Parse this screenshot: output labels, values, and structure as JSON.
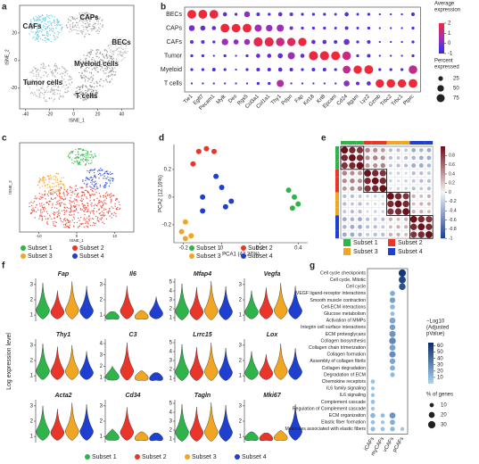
{
  "panels": {
    "a": {
      "label": "a",
      "x_label": "tSNE_1",
      "y_label": "tSNE_2",
      "xticks": [
        -40,
        -20,
        0,
        20,
        40
      ],
      "yticks": [
        -20,
        0,
        20
      ],
      "xlim": [
        -45,
        50
      ],
      "ylim": [
        -35,
        40
      ],
      "clusters": [
        "CAFs",
        "CAPs",
        "BECs",
        "Myeloid cells",
        "Tumor cells",
        "T cells"
      ]
    },
    "b": {
      "label": "b",
      "rows": [
        "BECs",
        "CAPs",
        "CAFs",
        "Tumor",
        "Myeloid",
        "T cells"
      ],
      "highlight_row_color": "#3fa7c9",
      "genes": [
        "Tie1",
        "Egfl7",
        "Pecam1",
        "Mylk",
        "Des",
        "Rgs5",
        "Col3a1",
        "Col1a1",
        "Thy1",
        "Pdpn",
        "Fap",
        "Krt18",
        "Krt8",
        "Epcam",
        "Cd24",
        "Itgam",
        "Lyz2",
        "Gzmb",
        "Trbc2",
        "Trbc1",
        "Ptprc"
      ],
      "expression": [
        [
          2,
          2,
          1.9,
          -0.3,
          -0.5,
          0.2,
          -0.4,
          -0.5,
          -0.3,
          -0.2,
          -0.5,
          -0.5,
          -0.5,
          -0.5,
          -0.4,
          -0.6,
          -0.6,
          -0.6,
          -0.6,
          -0.6,
          -0.6
        ],
        [
          0,
          -0.2,
          -0.3,
          2,
          2,
          2,
          0.5,
          0.3,
          0.5,
          -0.3,
          -0.5,
          -0.5,
          -0.5,
          -0.5,
          -0.5,
          -0.6,
          -0.6,
          -0.6,
          -0.6,
          -0.6,
          -0.6
        ],
        [
          -0.4,
          -0.4,
          -0.5,
          0.5,
          0.2,
          0.4,
          1.8,
          1.8,
          1.2,
          1.6,
          2,
          -0.3,
          -0.4,
          -0.4,
          -0.2,
          -0.5,
          -0.5,
          -0.6,
          -0.6,
          -0.6,
          -0.6
        ],
        [
          -0.6,
          -0.6,
          -0.6,
          -0.5,
          -0.5,
          -0.5,
          -0.3,
          -0.3,
          -0.3,
          0.5,
          -0.2,
          1.9,
          1.9,
          2,
          1.2,
          -0.5,
          -0.5,
          -0.6,
          -0.6,
          -0.6,
          -0.6
        ],
        [
          -0.6,
          -0.6,
          -0.5,
          -0.5,
          -0.6,
          -0.6,
          -0.5,
          -0.5,
          -0.5,
          -0.5,
          -0.5,
          -0.4,
          -0.5,
          -0.5,
          1,
          2,
          2,
          -0.4,
          -0.5,
          -0.5,
          1
        ],
        [
          -0.6,
          -0.6,
          -0.6,
          -0.6,
          -0.6,
          -0.6,
          -0.6,
          -0.6,
          0.8,
          -0.6,
          -0.6,
          -0.6,
          -0.6,
          -0.6,
          0.2,
          -0.3,
          -0.3,
          2,
          2,
          2,
          2
        ]
      ],
      "percent": [
        [
          90,
          92,
          88,
          20,
          10,
          40,
          15,
          10,
          20,
          15,
          10,
          10,
          10,
          8,
          20,
          8,
          10,
          5,
          5,
          5,
          15
        ],
        [
          40,
          30,
          20,
          90,
          85,
          90,
          60,
          50,
          60,
          15,
          10,
          10,
          10,
          8,
          15,
          8,
          10,
          5,
          5,
          5,
          10
        ],
        [
          15,
          15,
          10,
          50,
          30,
          40,
          95,
          95,
          85,
          80,
          80,
          20,
          20,
          15,
          40,
          10,
          15,
          5,
          5,
          5,
          10
        ],
        [
          10,
          10,
          5,
          10,
          5,
          10,
          20,
          20,
          30,
          60,
          20,
          95,
          95,
          90,
          85,
          10,
          15,
          5,
          5,
          5,
          10
        ],
        [
          10,
          10,
          15,
          10,
          5,
          10,
          15,
          15,
          20,
          15,
          10,
          15,
          15,
          10,
          70,
          80,
          90,
          10,
          10,
          10,
          85
        ],
        [
          5,
          5,
          5,
          5,
          5,
          5,
          10,
          10,
          60,
          5,
          5,
          5,
          5,
          5,
          40,
          15,
          20,
          80,
          85,
          80,
          90
        ]
      ],
      "color_title": [
        "Average",
        "expression"
      ],
      "color_lim": [
        -1,
        2
      ],
      "color_ticks": [
        2,
        1,
        0,
        -1
      ],
      "size_title": [
        "Percent",
        "expressed"
      ],
      "size_ticks": [
        25,
        50,
        75
      ]
    },
    "subsets": {
      "names": [
        "Subset 1",
        "Subset 2",
        "Subset 3",
        "Subset 4"
      ],
      "colors": [
        "#2fb34a",
        "#e8372a",
        "#f0a623",
        "#1f3fcf"
      ]
    },
    "c": {
      "label": "c",
      "x_label": "tSNE_1",
      "y_label": "tSNE_2",
      "xticks": [
        -10,
        0,
        10
      ],
      "xlim": [
        -15,
        15
      ]
    },
    "d": {
      "label": "d",
      "x_label": "PCA1 (43.27%)",
      "y_label": "PCA2 (12.16%)",
      "xlim": [
        -0.25,
        0.45
      ],
      "ylim": [
        -0.33,
        0.38
      ],
      "xticks": [
        -0.2,
        0,
        0.2,
        0.4
      ],
      "yticks": [
        -0.2,
        0,
        0.2
      ],
      "points": [
        {
          "x": [
            0.35,
            0.38,
            0.4,
            0.37
          ],
          "y": [
            0.05,
            0.0,
            -0.05,
            -0.08
          ]
        },
        {
          "x": [
            -0.12,
            -0.08,
            -0.04,
            -0.15
          ],
          "y": [
            0.33,
            0.35,
            0.33,
            0.24
          ]
        },
        {
          "x": [
            -0.19,
            -0.21,
            -0.16,
            -0.19
          ],
          "y": [
            -0.18,
            -0.25,
            -0.28,
            -0.3
          ]
        },
        {
          "x": [
            -0.03,
            0.0,
            -0.1,
            0.05,
            0.02,
            -0.1
          ],
          "y": [
            0.15,
            0.07,
            0.0,
            -0.03,
            -0.07,
            -0.1
          ]
        }
      ]
    },
    "e": {
      "label": "e",
      "groups": [
        0,
        0,
        0,
        1,
        1,
        1,
        2,
        2,
        2,
        3,
        3,
        3
      ],
      "lim": [
        -1,
        1
      ],
      "ticks": [
        0.8,
        0.6,
        0.4,
        0.2,
        0,
        -0.2,
        -0.4,
        -0.6,
        -0.8,
        -1
      ],
      "matrix": [
        [
          1,
          0.9,
          0.85,
          0.5,
          0.45,
          0.4,
          -0.3,
          -0.3,
          -0.25,
          -0.4,
          -0.35,
          -0.4
        ],
        [
          0.9,
          1,
          0.9,
          0.45,
          0.5,
          0.45,
          -0.3,
          -0.25,
          -0.3,
          -0.35,
          -0.4,
          -0.4
        ],
        [
          0.85,
          0.9,
          1,
          0.4,
          0.45,
          0.5,
          -0.25,
          -0.3,
          -0.3,
          -0.4,
          -0.4,
          -0.35
        ],
        [
          0.5,
          0.45,
          0.4,
          1,
          0.9,
          0.85,
          -0.2,
          -0.2,
          -0.15,
          -0.3,
          -0.3,
          -0.25
        ],
        [
          0.45,
          0.5,
          0.45,
          0.9,
          1,
          0.9,
          -0.2,
          -0.15,
          -0.2,
          -0.25,
          -0.3,
          -0.3
        ],
        [
          0.4,
          0.45,
          0.5,
          0.85,
          0.9,
          1,
          -0.15,
          -0.2,
          -0.2,
          -0.3,
          -0.25,
          -0.3
        ],
        [
          -0.3,
          -0.3,
          -0.25,
          -0.2,
          -0.2,
          -0.15,
          1,
          0.9,
          0.85,
          0.3,
          0.25,
          0.3
        ],
        [
          -0.3,
          -0.25,
          -0.3,
          -0.2,
          -0.15,
          -0.2,
          0.9,
          1,
          0.9,
          0.25,
          0.3,
          0.3
        ],
        [
          -0.25,
          -0.3,
          -0.3,
          -0.15,
          -0.2,
          -0.2,
          0.85,
          0.9,
          1,
          0.3,
          0.3,
          0.25
        ],
        [
          -0.4,
          -0.35,
          -0.4,
          -0.3,
          -0.25,
          -0.3,
          0.3,
          0.25,
          0.3,
          1,
          0.9,
          0.85
        ],
        [
          -0.35,
          -0.4,
          -0.4,
          -0.3,
          -0.3,
          -0.25,
          0.25,
          0.3,
          0.3,
          0.9,
          1,
          0.9
        ],
        [
          -0.4,
          -0.4,
          -0.35,
          -0.25,
          -0.3,
          -0.3,
          0.3,
          0.3,
          0.25,
          0.85,
          0.9,
          1
        ]
      ]
    },
    "f": {
      "label": "f",
      "y_label": "Log expression level",
      "genes": [
        {
          "name": "Fap",
          "ylim": [
            0.6,
            3.4
          ],
          "ticks": [
            1,
            2,
            3
          ],
          "max": [
            3.1,
            2.6,
            3.2,
            2.9
          ]
        },
        {
          "name": "Il6",
          "ylim": [
            0.6,
            3.4
          ],
          "ticks": [
            1,
            2,
            3
          ],
          "max": [
            1.2,
            2.9,
            1.3,
            2.2
          ]
        },
        {
          "name": "Mfap4",
          "ylim": [
            0.6,
            5.4
          ],
          "ticks": [
            1,
            2,
            3,
            4,
            5
          ],
          "max": [
            4.8,
            4.4,
            5.1,
            4.5
          ]
        },
        {
          "name": "Vegfa",
          "ylim": [
            0.6,
            3.4
          ],
          "ticks": [
            1,
            2,
            3
          ],
          "max": [
            2.6,
            2.8,
            3.1,
            2.9
          ]
        },
        {
          "name": "Thy1",
          "ylim": [
            0.6,
            3.4
          ],
          "ticks": [
            1,
            2,
            3
          ],
          "max": [
            3.1,
            2.9,
            3.0,
            2.6
          ]
        },
        {
          "name": "C3",
          "ylim": [
            0.6,
            4.4
          ],
          "ticks": [
            1,
            2,
            3,
            4
          ],
          "max": [
            2.0,
            4.1,
            1.6,
            1.4
          ]
        },
        {
          "name": "Lrrc15",
          "ylim": [
            0.6,
            5.4
          ],
          "ticks": [
            1,
            2,
            3,
            4,
            5
          ],
          "max": [
            4.8,
            4.5,
            5.0,
            4.4
          ]
        },
        {
          "name": "Lox",
          "ylim": [
            0.6,
            3.4
          ],
          "ticks": [
            1,
            2,
            3
          ],
          "max": [
            2.6,
            2.4,
            3.1,
            2.8
          ]
        },
        {
          "name": "Acta2",
          "ylim": [
            0.6,
            3.4
          ],
          "ticks": [
            1,
            2,
            3
          ],
          "max": [
            3.0,
            2.8,
            3.2,
            3.1
          ]
        },
        {
          "name": "Cd34",
          "ylim": [
            0.6,
            3.4
          ],
          "ticks": [
            1,
            2,
            3
          ],
          "max": [
            1.5,
            2.9,
            1.3,
            1.2
          ]
        },
        {
          "name": "Tagln",
          "ylim": [
            0.6,
            5.4
          ],
          "ticks": [
            1,
            2,
            3,
            4,
            5
          ],
          "max": [
            4.9,
            4.6,
            5.1,
            4.8
          ]
        },
        {
          "name": "Mki67",
          "ylim": [
            0.6,
            3.4
          ],
          "ticks": [
            1,
            2,
            3
          ],
          "max": [
            1.3,
            1.2,
            1.4,
            3.1
          ]
        }
      ]
    },
    "g": {
      "label": "g",
      "columns": [
        "iCAFs",
        "myCAFs",
        "vCAFs",
        "pCAFs"
      ],
      "terms": [
        "Cell cycle checkpoints",
        "Cell cycle, Mitotic",
        "Cell cycle",
        "VEGF ligand-receptor interactions",
        "Smooth muscle contraction",
        "Cell-ECM interactions",
        "Glucose metabolism",
        "Activation of MMPs",
        "Integrin cell surface interactions",
        "ECM proteoglycans",
        "Collagen biosynthesis",
        "Collagen chain trimerization",
        "Collagen formation",
        "Assembly of collagen fibrils",
        "Collagen degradation",
        "Degradation of ECM",
        "Chemokine receptors",
        "IL6 family signaling",
        "IL6 signaling",
        "Complement cascade",
        "Regulation of Complement cascade",
        "ECM organization",
        "Elastic fiber formation",
        "Molecules associated with elastic fibers"
      ],
      "logp": [
        [
          null,
          null,
          null,
          60
        ],
        [
          null,
          null,
          null,
          55
        ],
        [
          null,
          null,
          null,
          50
        ],
        [
          null,
          null,
          15,
          null
        ],
        [
          null,
          null,
          20,
          null
        ],
        [
          null,
          null,
          12,
          null
        ],
        [
          null,
          null,
          10,
          null
        ],
        [
          null,
          null,
          18,
          null
        ],
        [
          null,
          null,
          22,
          null
        ],
        [
          null,
          null,
          25,
          null
        ],
        [
          null,
          null,
          30,
          null
        ],
        [
          null,
          null,
          20,
          null
        ],
        [
          null,
          null,
          28,
          null
        ],
        [
          null,
          null,
          18,
          null
        ],
        [
          null,
          null,
          15,
          null
        ],
        [
          null,
          null,
          10,
          null
        ],
        [
          8,
          null,
          null,
          null
        ],
        [
          6,
          null,
          null,
          null
        ],
        [
          7,
          null,
          null,
          null
        ],
        [
          8,
          null,
          null,
          null
        ],
        [
          6,
          null,
          null,
          null
        ],
        [
          12,
          10,
          25,
          null
        ],
        [
          8,
          6,
          15,
          null
        ],
        [
          10,
          8,
          12,
          6
        ]
      ],
      "pct": [
        [
          null,
          null,
          null,
          30
        ],
        [
          null,
          null,
          null,
          28
        ],
        [
          null,
          null,
          null,
          25
        ],
        [
          null,
          null,
          15,
          null
        ],
        [
          null,
          null,
          18,
          null
        ],
        [
          null,
          null,
          14,
          null
        ],
        [
          null,
          null,
          10,
          null
        ],
        [
          null,
          null,
          20,
          null
        ],
        [
          null,
          null,
          18,
          null
        ],
        [
          null,
          null,
          22,
          null
        ],
        [
          null,
          null,
          25,
          null
        ],
        [
          null,
          null,
          20,
          null
        ],
        [
          null,
          null,
          22,
          null
        ],
        [
          null,
          null,
          18,
          null
        ],
        [
          null,
          null,
          15,
          null
        ],
        [
          null,
          null,
          12,
          null
        ],
        [
          10,
          null,
          null,
          null
        ],
        [
          8,
          null,
          null,
          null
        ],
        [
          8,
          null,
          null,
          null
        ],
        [
          10,
          null,
          null,
          null
        ],
        [
          8,
          null,
          null,
          null
        ],
        [
          14,
          10,
          20,
          null
        ],
        [
          10,
          8,
          15,
          null
        ],
        [
          12,
          10,
          12,
          8
        ]
      ],
      "column_colors": [
        "#2fb34a",
        "#e8372a",
        "#f0a623",
        "#1f3fcf"
      ],
      "color_title": [
        "−Log10",
        "(Adjusted",
        "pValue)"
      ],
      "color_lim": [
        0,
        65
      ],
      "color_ticks": [
        60,
        50,
        40,
        30,
        20,
        10
      ],
      "size_title": [
        "% of genes"
      ],
      "size_ticks": [
        10,
        20,
        30
      ]
    }
  }
}
